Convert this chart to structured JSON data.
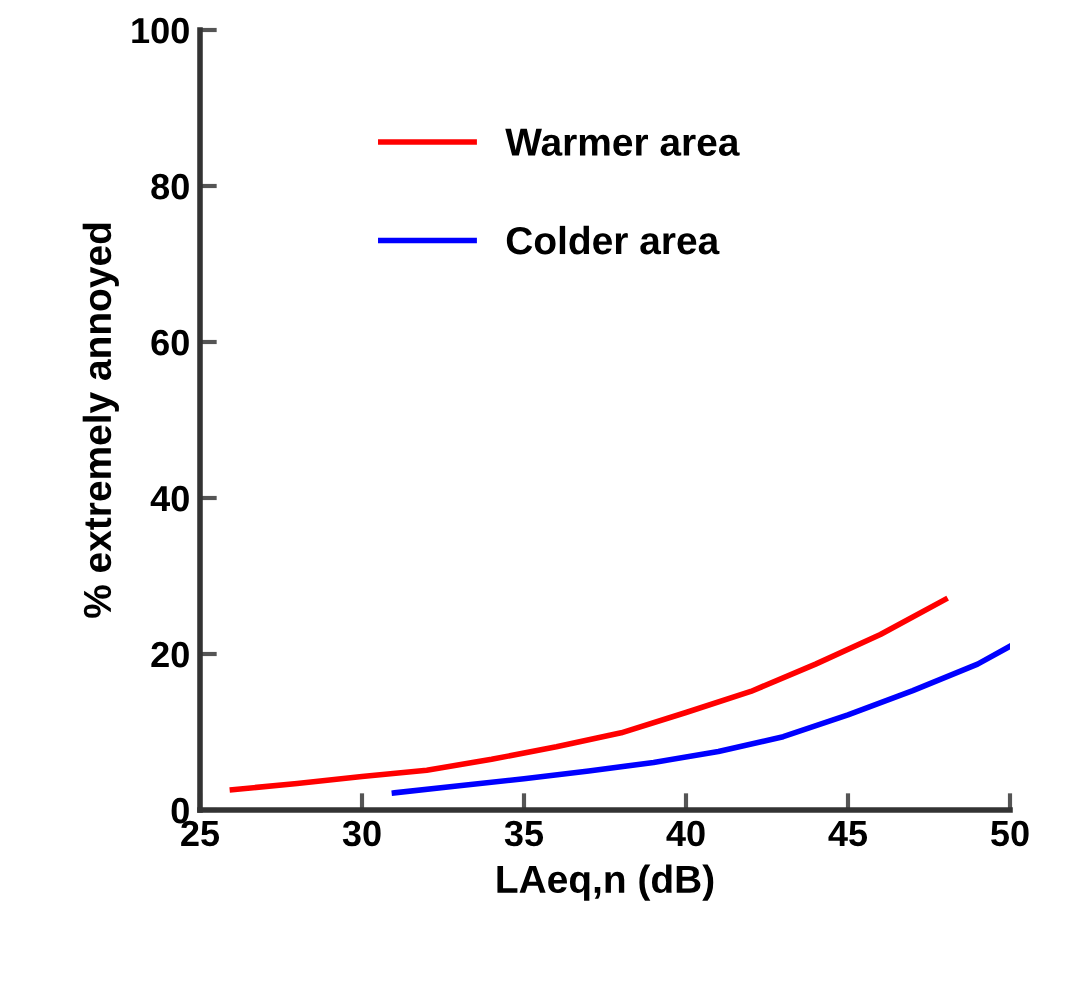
{
  "chart_data": {
    "type": "line",
    "xlabel": "LAeq,n (dB)",
    "ylabel": "% extremely annoyed",
    "xlim": [
      25,
      50
    ],
    "xticks": [
      25,
      30,
      35,
      40,
      45,
      50
    ],
    "ylim": [
      0,
      100
    ],
    "yticks": [
      0,
      20,
      40,
      60,
      80,
      100
    ],
    "grid": false,
    "legend": "top left",
    "marker": "none",
    "line_style": "solid",
    "series": [
      {
        "name": "Warmer area",
        "color": "#ff0000",
        "x": [
          26,
          28,
          30,
          32,
          34,
          36,
          38,
          40,
          42,
          44,
          46,
          48
        ],
        "values": [
          2.6,
          3.4,
          4.3,
          5.1,
          6.5,
          8.1,
          9.9,
          12.5,
          15.2,
          18.7,
          22.5,
          27.0
        ]
      },
      {
        "name": "Colder area",
        "color": "#0000ff",
        "x": [
          31,
          33,
          35,
          37,
          39,
          41,
          43,
          45,
          47,
          49,
          50
        ],
        "values": [
          2.2,
          3.1,
          4.0,
          5.0,
          6.1,
          7.5,
          9.4,
          12.2,
          15.3,
          18.7,
          21.0
        ]
      }
    ]
  }
}
